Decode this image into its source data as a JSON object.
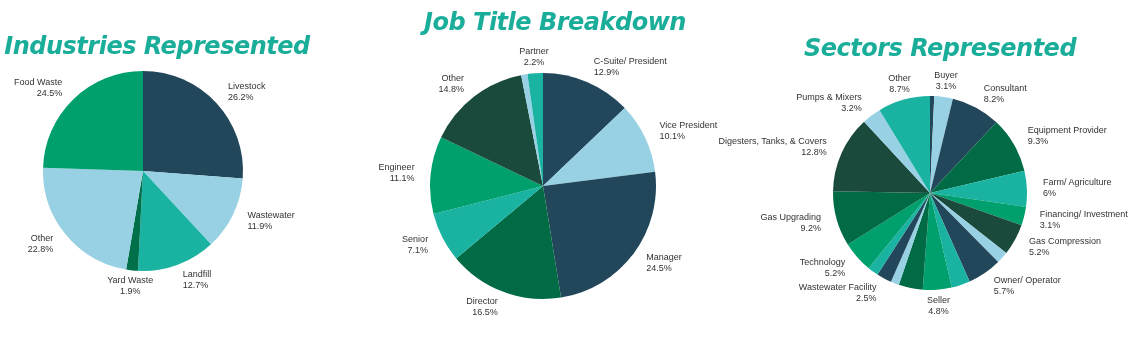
{
  "chart_data": [
    {
      "type": "pie",
      "title": "Industries Represented",
      "categories": [
        "Livestock",
        "Wastewater",
        "Landfill",
        "Yard Waste",
        "Other",
        "Food Waste"
      ],
      "values": [
        26.2,
        11.9,
        12.7,
        1.9,
        22.8,
        24.5
      ],
      "value_labels": [
        "26.2%",
        "11.9%",
        "12.7%",
        "1.9%",
        "22.8%",
        "24.5%"
      ],
      "colors": [
        "#22475a",
        "#97d1e3",
        "#1ab2a0",
        "#00704a",
        "#97d1e3",
        "#00a06e"
      ]
    },
    {
      "type": "pie",
      "title": "Job Title Breakdown",
      "categories": [
        "C-Suite/ President",
        "Vice President",
        "Manager",
        "Director",
        "Senior",
        "Engineer",
        "Other",
        null,
        "Partner"
      ],
      "values": [
        12.9,
        10.1,
        24.5,
        16.5,
        7.1,
        11.1,
        14.8,
        0.9,
        2.2
      ],
      "value_labels": [
        "12.9%",
        "10.1%",
        "24.5%",
        "16.5%",
        "7.1%",
        "11.1%",
        "14.8%",
        null,
        "2.2%"
      ],
      "colors": [
        "#22475a",
        "#97d1e3",
        "#22475a",
        "#006b45",
        "#1ab2a0",
        "#00a06e",
        "#1a4a3c",
        "#97d1e3",
        "#1ab2a0"
      ]
    },
    {
      "type": "pie",
      "title": "Sectors Represented",
      "categories": [
        null,
        "Buyer",
        "Consultant",
        "Equipment Provider",
        "Farm/ Agriculture",
        "Financing/ Investment",
        "Gas Compression",
        null,
        "Owner/ Operator",
        null,
        "Seller",
        null,
        null,
        "Wastewater Facility",
        null,
        "Technology",
        "Gas Upgrading",
        "Digesters, Tanks, & Covers",
        "Pumps & Mixers",
        "Other"
      ],
      "values": [
        0.7,
        3.1,
        8.2,
        9.3,
        6,
        3.1,
        5.2,
        2,
        5.7,
        3.1,
        4.8,
        4,
        1.4,
        2.5,
        1.8,
        5.2,
        9.2,
        12.8,
        3.2,
        8.7
      ],
      "value_labels": [
        null,
        "3.1%",
        "8.2%",
        "9.3%",
        "6%",
        "3.1%",
        "5.2%",
        null,
        "5.7%",
        null,
        "4.8%",
        null,
        null,
        "2.5%",
        null,
        "5.2%",
        "9.2%",
        "12.8%",
        "3.2%",
        "8.7%"
      ],
      "colors": [
        "#22475a",
        "#97d1e3",
        "#22475a",
        "#006b45",
        "#1ab2a0",
        "#00a06e",
        "#1a4a3c",
        "#97d1e3",
        "#22475a",
        "#1ab2a0",
        "#00a06e",
        "#006b45",
        "#97d1e3",
        "#22475a",
        "#1ab2a0",
        "#00a06e",
        "#006b45",
        "#1a4a3c",
        "#97d1e3",
        "#1ab2a0"
      ]
    }
  ]
}
